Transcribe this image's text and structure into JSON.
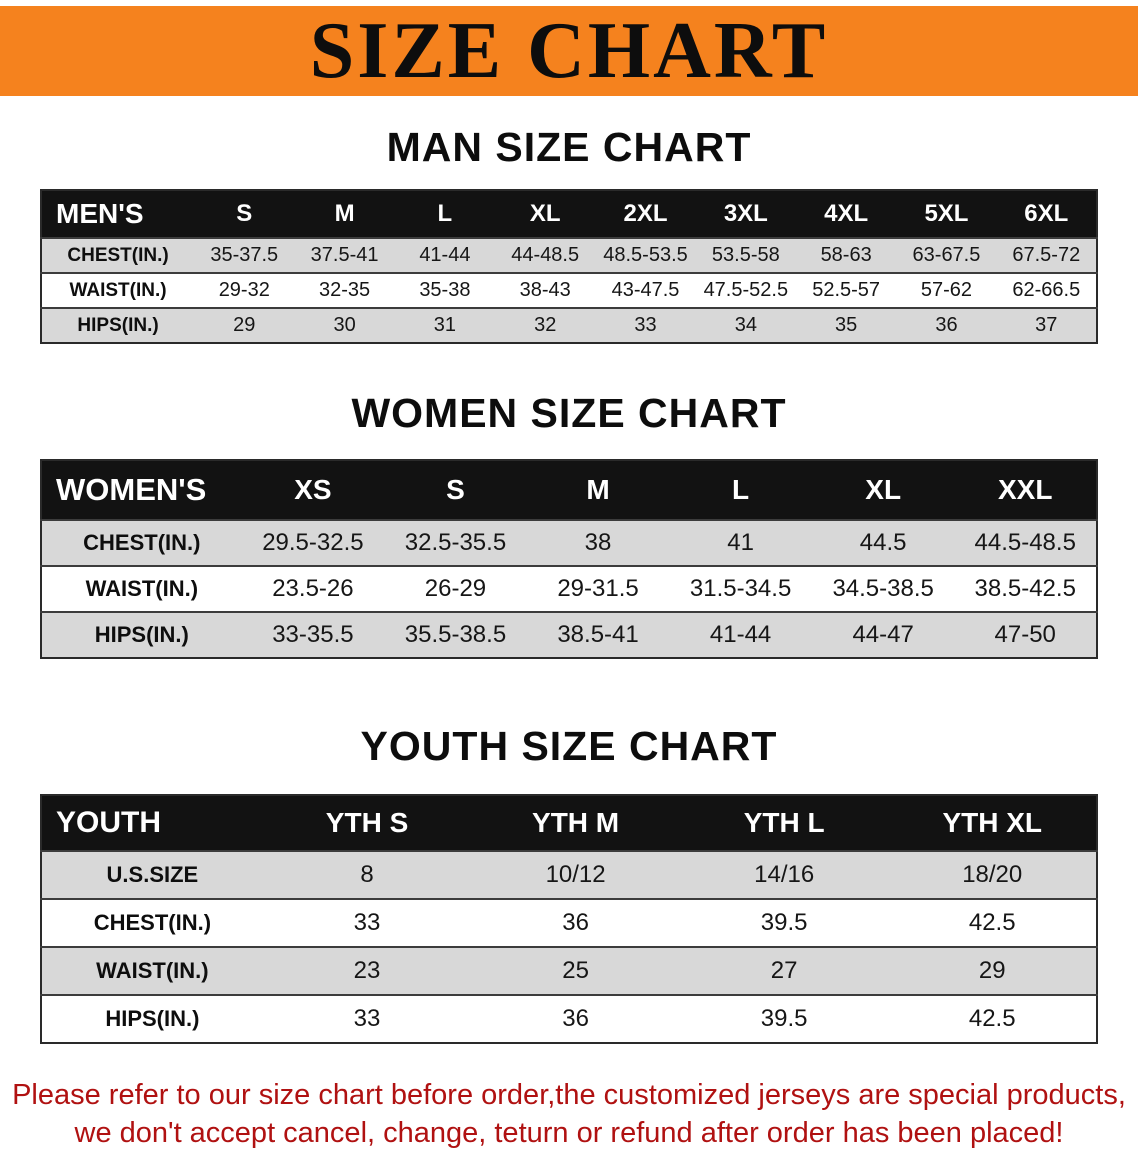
{
  "banner": {
    "title": "SIZE CHART"
  },
  "colors": {
    "banner-bg": "#f5821e",
    "row-gray": "#d8d8d8",
    "disclaimer-color": "#b01111"
  },
  "sections": [
    {
      "heading": "MAN SIZE CHART",
      "table": {
        "header": [
          "MEN'S",
          "S",
          "M",
          "L",
          "XL",
          "2XL",
          "3XL",
          "4XL",
          "5XL",
          "6XL"
        ],
        "rows": [
          [
            "CHEST(IN.)",
            "35-37.5",
            "37.5-41",
            "41-44",
            "44-48.5",
            "48.5-53.5",
            "53.5-58",
            "58-63",
            "63-67.5",
            "67.5-72"
          ],
          [
            "WAIST(IN.)",
            "29-32",
            "32-35",
            "35-38",
            "38-43",
            "43-47.5",
            "47.5-52.5",
            "52.5-57",
            "57-62",
            "62-66.5"
          ],
          [
            "HIPS(IN.)",
            "29",
            "30",
            "31",
            "32",
            "33",
            "34",
            "35",
            "36",
            "37"
          ]
        ]
      }
    },
    {
      "heading": "WOMEN SIZE CHART",
      "table": {
        "header": [
          "WOMEN'S",
          "XS",
          "S",
          "M",
          "L",
          "XL",
          "XXL"
        ],
        "rows": [
          [
            "CHEST(IN.)",
            "29.5-32.5",
            "32.5-35.5",
            "38",
            "41",
            "44.5",
            "44.5-48.5"
          ],
          [
            "WAIST(IN.)",
            "23.5-26",
            "26-29",
            "29-31.5",
            "31.5-34.5",
            "34.5-38.5",
            "38.5-42.5"
          ],
          [
            "HIPS(IN.)",
            "33-35.5",
            "35.5-38.5",
            "38.5-41",
            "41-44",
            "44-47",
            "47-50"
          ]
        ]
      }
    },
    {
      "heading": "YOUTH SIZE CHART",
      "table": {
        "header": [
          "YOUTH",
          "YTH S",
          "YTH M",
          "YTH L",
          "YTH XL"
        ],
        "rows": [
          [
            "U.S.SIZE",
            "8",
            "10/12",
            "14/16",
            "18/20"
          ],
          [
            "CHEST(IN.)",
            "33",
            "36",
            "39.5",
            "42.5"
          ],
          [
            "WAIST(IN.)",
            "23",
            "25",
            "27",
            "29"
          ],
          [
            "HIPS(IN.)",
            "33",
            "36",
            "39.5",
            "42.5"
          ]
        ]
      }
    }
  ],
  "disclaimer": {
    "line1": "Please refer to our size chart before order,the customized jerseys are special products,",
    "line2": "we don't accept cancel, change, teturn or refund after order has been placed!"
  }
}
